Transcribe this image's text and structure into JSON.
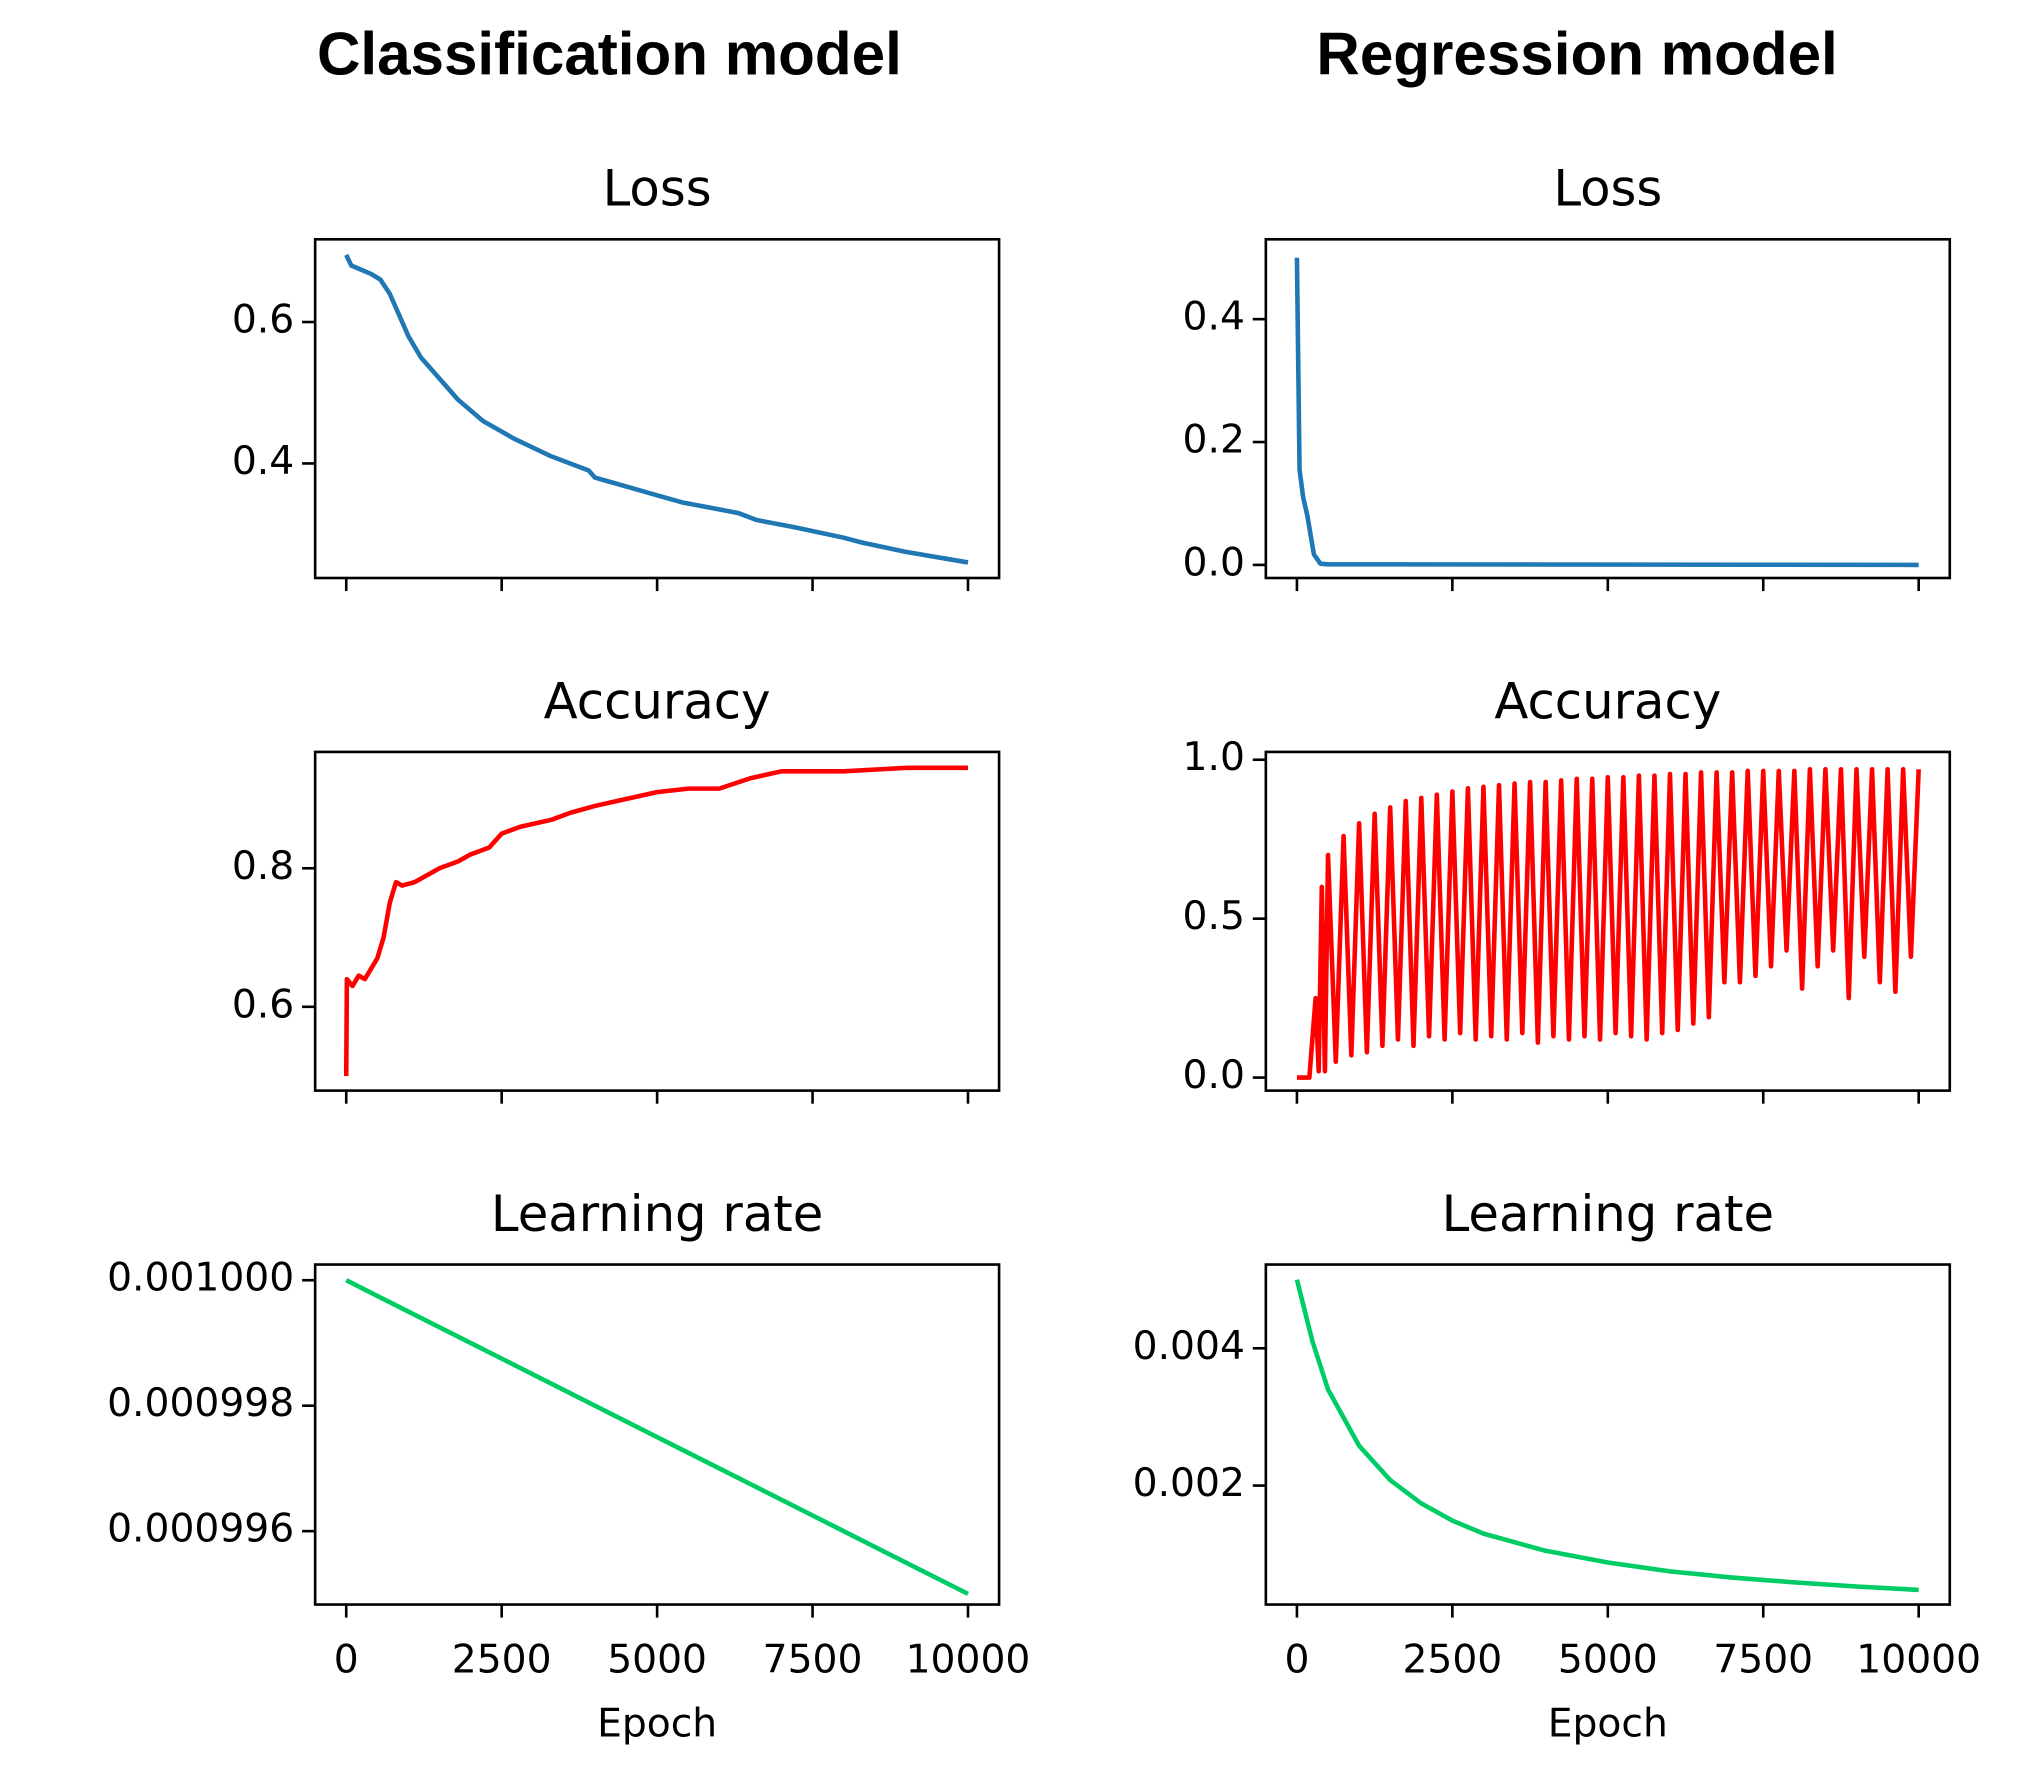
{
  "headings": [
    "Classification model",
    "Regression model"
  ],
  "chart_data": [
    {
      "type": "line",
      "title": "Loss",
      "color": "#1f77b4",
      "xtick_labels": false,
      "x": [
        0,
        80,
        400,
        550,
        700,
        850,
        1000,
        1200,
        1500,
        1800,
        2200,
        2700,
        3300,
        3900,
        4000,
        4200,
        5000,
        5400,
        6300,
        6600,
        7200,
        8000,
        8300,
        9000,
        10000
      ],
      "values": [
        0.695,
        0.68,
        0.668,
        0.66,
        0.64,
        0.61,
        0.58,
        0.55,
        0.52,
        0.49,
        0.46,
        0.435,
        0.41,
        0.39,
        0.38,
        0.375,
        0.355,
        0.345,
        0.33,
        0.32,
        0.31,
        0.295,
        0.288,
        0.275,
        0.26
      ],
      "xlim": [
        -500,
        10500
      ],
      "xticks": [
        0,
        2500,
        5000,
        7500,
        10000
      ],
      "ylim": [
        0.238,
        0.717
      ],
      "yticks": [
        0.4,
        0.6
      ]
    },
    {
      "type": "line",
      "title": "Accuracy",
      "color": "#ff0000",
      "xtick_labels": false,
      "x": [
        0,
        10,
        100,
        200,
        300,
        400,
        500,
        600,
        700,
        800,
        900,
        1100,
        1300,
        1500,
        1800,
        2000,
        2300,
        2500,
        2800,
        3300,
        3600,
        4000,
        4500,
        5000,
        5500,
        6000,
        6500,
        7000,
        8000,
        9000,
        10000
      ],
      "values": [
        0.5,
        0.64,
        0.63,
        0.645,
        0.64,
        0.655,
        0.67,
        0.7,
        0.75,
        0.78,
        0.775,
        0.78,
        0.79,
        0.8,
        0.81,
        0.82,
        0.83,
        0.85,
        0.86,
        0.87,
        0.88,
        0.89,
        0.9,
        0.91,
        0.915,
        0.915,
        0.93,
        0.94,
        0.94,
        0.945,
        0.945
      ],
      "xlim": [
        -500,
        10500
      ],
      "xticks": [
        0,
        2500,
        5000,
        7500,
        10000
      ],
      "ylim": [
        0.479,
        0.968
      ],
      "yticks": [
        0.6,
        0.8
      ]
    },
    {
      "type": "line",
      "title": "Learning rate",
      "color": "#00cc66",
      "xtick_labels": true,
      "xlabel": "Epoch",
      "x": [
        0,
        10000
      ],
      "values": [
        0.001,
        0.000995
      ],
      "xlim": [
        -500,
        10500
      ],
      "xticks": [
        0,
        2500,
        5000,
        7500,
        10000
      ],
      "ylim": [
        0.00099483,
        0.00100025
      ],
      "yticks": [
        {
          "value": 0.000996,
          "label": "0.000996"
        },
        {
          "value": 0.000998,
          "label": "0.000998"
        },
        {
          "value": 0.001,
          "label": "0.001000"
        }
      ]
    },
    {
      "type": "line",
      "title": "Loss",
      "color": "#1f77b4",
      "xtick_labels": false,
      "x": [
        0,
        42,
        100,
        168,
        273,
        378,
        500,
        10000
      ],
      "values": [
        0.5,
        0.155,
        0.11,
        0.08,
        0.017,
        0.002,
        0.001,
        0.0
      ],
      "xlim": [
        -500,
        10500
      ],
      "xticks": [
        0,
        2500,
        5000,
        7500,
        10000
      ],
      "ylim": [
        -0.0213,
        0.53
      ],
      "yticks": [
        {
          "value": 0,
          "label": "0.0"
        },
        0.2,
        0.4
      ]
    },
    {
      "type": "line",
      "title": "Accuracy",
      "color": "#ff0000",
      "xtick_labels": false,
      "x": [
        0,
        200,
        300,
        350,
        400,
        450,
        500,
        625,
        750,
        875,
        1000,
        1125,
        1250,
        1375,
        1500,
        1625,
        1750,
        1875,
        2000,
        2125,
        2250,
        2375,
        2500,
        2625,
        2750,
        2875,
        3000,
        3125,
        3250,
        3375,
        3500,
        3625,
        3750,
        3875,
        4000,
        4125,
        4250,
        4375,
        4500,
        4625,
        4750,
        4875,
        5000,
        5125,
        5250,
        5375,
        5500,
        5625,
        5750,
        5875,
        6000,
        6125,
        6250,
        6375,
        6500,
        6625,
        6750,
        6875,
        7000,
        7125,
        7250,
        7375,
        7500,
        7625,
        7750,
        7875,
        8000,
        8125,
        8250,
        8375,
        8500,
        8625,
        8750,
        8875,
        9000,
        9125,
        9250,
        9375,
        9500,
        9625,
        9750,
        9875,
        10000
      ],
      "values": [
        0,
        0,
        0.25,
        0.02,
        0.6,
        0.02,
        0.7,
        0.05,
        0.76,
        0.07,
        0.8,
        0.08,
        0.83,
        0.1,
        0.85,
        0.12,
        0.87,
        0.1,
        0.88,
        0.13,
        0.89,
        0.12,
        0.9,
        0.14,
        0.91,
        0.12,
        0.915,
        0.13,
        0.92,
        0.12,
        0.925,
        0.14,
        0.93,
        0.11,
        0.93,
        0.13,
        0.935,
        0.12,
        0.94,
        0.13,
        0.94,
        0.12,
        0.945,
        0.14,
        0.945,
        0.13,
        0.95,
        0.12,
        0.95,
        0.14,
        0.955,
        0.15,
        0.955,
        0.17,
        0.96,
        0.19,
        0.96,
        0.3,
        0.96,
        0.3,
        0.965,
        0.32,
        0.965,
        0.35,
        0.965,
        0.4,
        0.965,
        0.28,
        0.97,
        0.35,
        0.97,
        0.4,
        0.97,
        0.25,
        0.97,
        0.38,
        0.97,
        0.3,
        0.97,
        0.27,
        0.97,
        0.38,
        0.97
      ],
      "xlim": [
        -500,
        10500
      ],
      "xticks": [
        0,
        2500,
        5000,
        7500,
        10000
      ],
      "ylim": [
        -0.041,
        1.0246
      ],
      "yticks": [
        {
          "value": 0,
          "label": "0.0"
        },
        0.5,
        {
          "value": 1,
          "label": "1.0"
        }
      ]
    },
    {
      "type": "line",
      "title": "Learning rate",
      "color": "#00cc66",
      "xtick_labels": true,
      "xlabel": "Epoch",
      "x": [
        0,
        250,
        500,
        1000,
        1500,
        2000,
        2500,
        3000,
        4000,
        5000,
        6000,
        7000,
        8000,
        9000,
        10000
      ],
      "values": [
        0.005,
        0.0041,
        0.0034,
        0.00258,
        0.00208,
        0.00174,
        0.00149,
        0.0013,
        0.00105,
        0.00088,
        0.00075,
        0.00066,
        0.00059,
        0.00053,
        0.00048
      ],
      "xlim": [
        -500,
        10500
      ],
      "xticks": [
        0,
        2500,
        5000,
        7500,
        10000
      ],
      "ylim": [
        0.000267,
        0.00522
      ],
      "yticks": [
        0.002,
        0.004
      ]
    }
  ]
}
